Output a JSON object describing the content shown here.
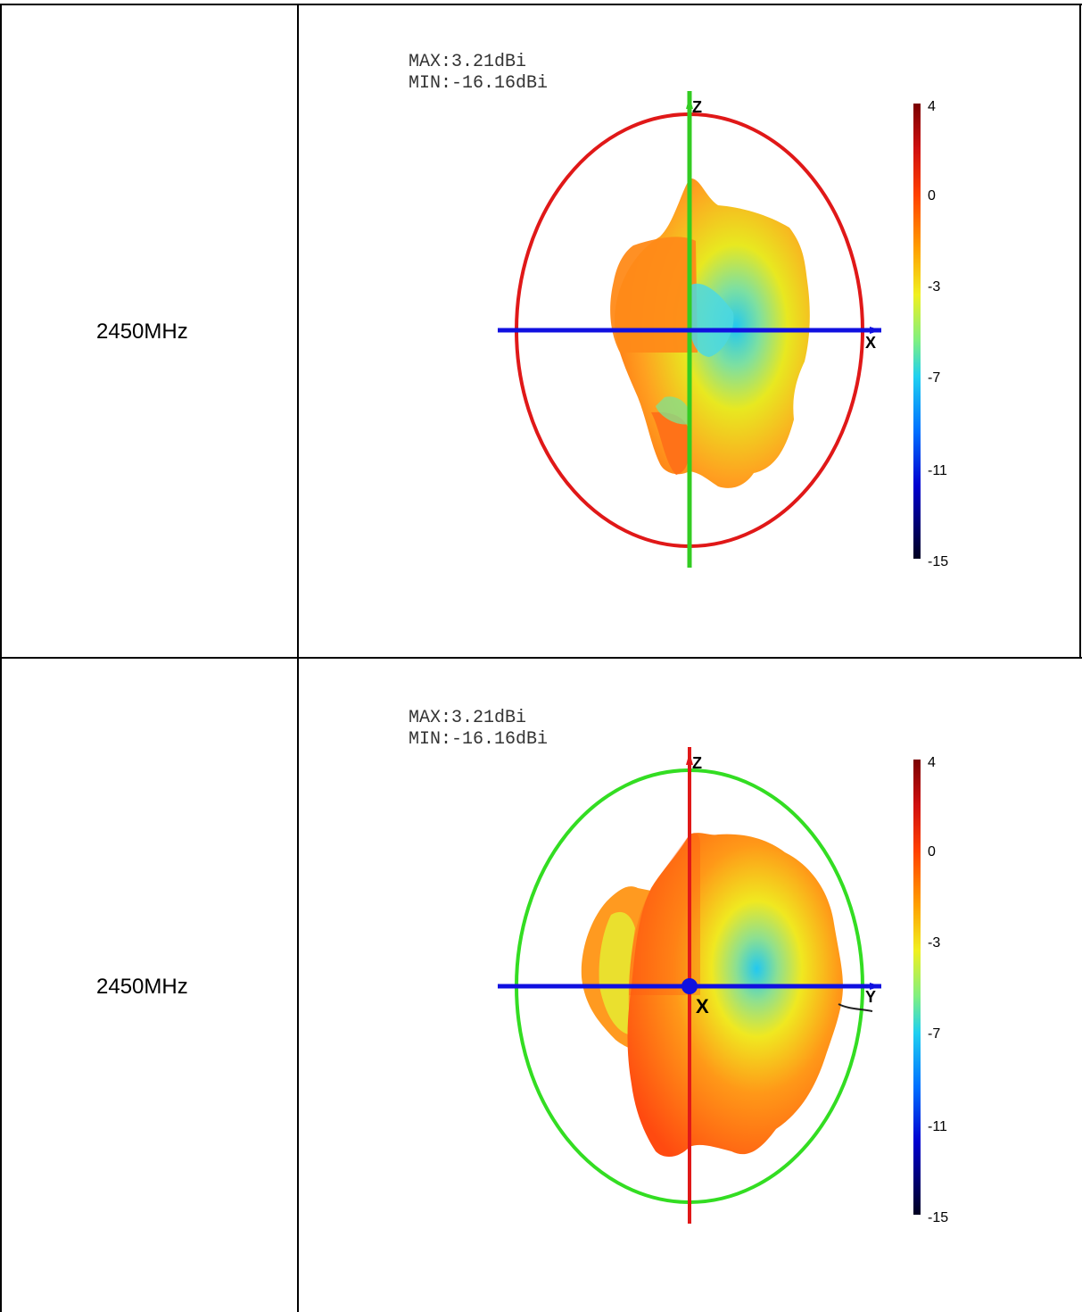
{
  "rows": [
    {
      "frequency": "2450MHz",
      "plot": {
        "max_label": "MAX:3.21dBi",
        "min_label": "MIN:-16.16dBi",
        "vertical_axis": "Z",
        "horizontal_axis": "X",
        "ring_color": "#e01818",
        "vertical_axis_color": "#33cc22",
        "horizontal_axis_color": "#1010e0",
        "colorbar_ticks": [
          "4",
          "0",
          "-3",
          "-7",
          "-11",
          "-15"
        ]
      }
    },
    {
      "frequency": "2450MHz",
      "plot": {
        "max_label": "MAX:3.21dBi",
        "min_label": "MIN:-16.16dBi",
        "vertical_axis": "Z",
        "horizontal_axis": "Y",
        "center_axis": "X",
        "ring_color": "#33dd22",
        "vertical_axis_color": "#e01818",
        "horizontal_axis_color": "#1010e0",
        "colorbar_ticks": [
          "4",
          "0",
          "-3",
          "-7",
          "-11",
          "-15"
        ]
      }
    }
  ]
}
